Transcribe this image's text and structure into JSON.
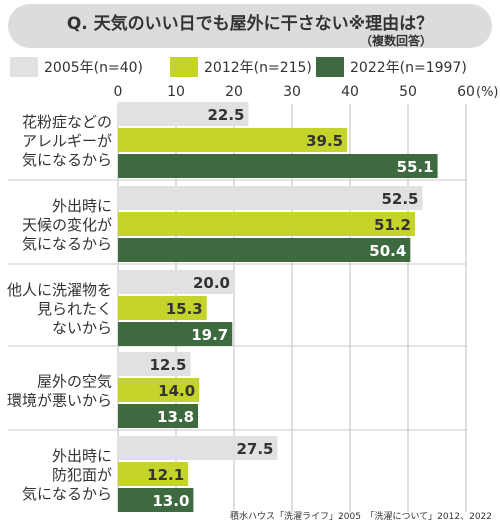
{
  "header": {
    "title": "Q. 天気のいい日でも屋外に干さない※理由は？",
    "note": "（複数回答）"
  },
  "chart_data": {
    "type": "bar",
    "orientation": "horizontal",
    "categories": [
      [
        "花粉症などの",
        "アレルギーが",
        "気になるから"
      ],
      [
        "外出時に",
        "天候の変化が",
        "気になるから"
      ],
      [
        "他人に洗濯物を",
        "見られたく",
        "ないから"
      ],
      [
        "屋外の空気",
        "環境が悪いから"
      ],
      [
        "外出時に",
        "防犯面が",
        "気になるから"
      ]
    ],
    "series": [
      {
        "name": "2005年(n=40)",
        "color": "#e1e1e1",
        "values": [
          22.5,
          52.5,
          20.0,
          12.5,
          27.5
        ]
      },
      {
        "name": "2012年(n=215)",
        "color": "#c4d42a",
        "values": [
          39.5,
          51.2,
          15.3,
          14.0,
          12.1
        ]
      },
      {
        "name": "2022年(n=1997)",
        "color": "#3e6a40",
        "values": [
          55.1,
          50.4,
          19.7,
          13.8,
          13.0
        ]
      }
    ],
    "xlim": [
      0,
      60
    ],
    "ticks": [
      "0",
      "10",
      "20",
      "30",
      "40",
      "50",
      "60"
    ],
    "unit": "(%)",
    "grid": true,
    "legend_position": "top"
  },
  "source": "積水ハウス「洗濯ライフ」2005　「洗濯について」2012、2022"
}
